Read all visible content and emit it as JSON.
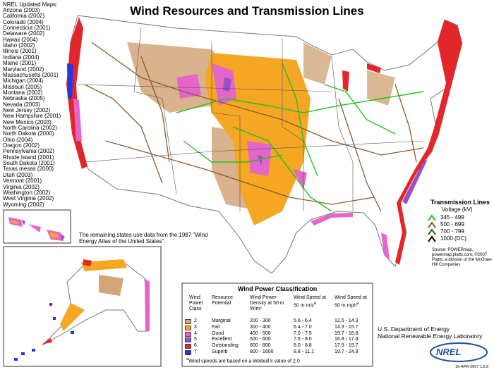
{
  "header": {
    "title": "Wind Resources and Transmission Lines"
  },
  "updated_maps": {
    "title": "NREL Updated Maps:",
    "states": [
      "Arizona (2003)",
      "California (2002)",
      "Colorado (2004)",
      "Connecticut (2001)",
      "Delaware (2002)",
      "Hawaii (2004)",
      "Idaho (2002)",
      "Illinois (2001)",
      "Indiana (2004)",
      "Maine (2001)",
      "Maryland (2002)",
      "Massachusetts (2001)",
      "Michigan (2004)",
      "Missouri (2005)",
      "Montana (2002)",
      "Nebraska (2005)",
      "Nevada (2003)",
      "New Jersey (2002)",
      "New Hampshire (2001)",
      "New Mexico (2003)",
      "North Carolina (2002)",
      "North Dakota (2000)",
      "Ohio (2004)",
      "Oregon (2002)",
      "Pennsylvania (2002)",
      "Rhode Island (2001)",
      "South Dakota (2001)",
      "Texas mesas (2000)",
      "Utah (2003)",
      "Vermont (2001)",
      "Virginia (2002)",
      "Washington (2002)",
      "West Virginia (2002)",
      "Wyoming (2002)"
    ]
  },
  "remaining_note": "The remaining states use data from the 1987 \"Wind Energy Atlas of the United States\".",
  "transmission": {
    "title": "Transmission Lines",
    "subtitle": "Voltage (kV)",
    "items": [
      "345 - 499",
      "500 - 699",
      "700 - 799",
      "1000 (DC)"
    ],
    "source": "Source: POWERmap, powermap.platts.com, ©2007 Platts, a division of the McGraw-Hill Companies"
  },
  "table": {
    "title": "Wind Power Classification",
    "headers": [
      "Wind Power Class",
      "Resource Potential",
      "Wind Power Density at 50 m W/m²",
      "Wind Speed at 50 m m/s",
      "Wind Speed at 50 m mph"
    ],
    "rows": [
      [
        2,
        "Marginal",
        "200 - 300",
        "5.6 - 6.4",
        "12.5 - 14.3"
      ],
      [
        3,
        "Fair",
        "300 - 400",
        "6.4 - 7.0",
        "14.3 - 15.7"
      ],
      [
        4,
        "Good",
        "400 - 500",
        "7.0 - 7.5",
        "15.7 - 16.8"
      ],
      [
        5,
        "Excellent",
        "500 - 600",
        "7.5 - 8.0",
        "16.8 - 17.9"
      ],
      [
        6,
        "Outstanding",
        "600 - 800",
        "8.0 - 8.8",
        "17.9 - 19.7"
      ],
      [
        7,
        "Superb",
        "800 - 1600",
        "8.8 - 11.1",
        "19.7 - 24.8"
      ]
    ],
    "footnote": {
      "mark": "a",
      "text": "Wind speeds are based on a Weibull k value of 2.0"
    }
  },
  "credits": {
    "agency": "U.S. Department of Energy",
    "lab": "National Renewable Energy Laboratory",
    "logo": "NREL",
    "date": "19-APR-2007 1.5.9"
  }
}
